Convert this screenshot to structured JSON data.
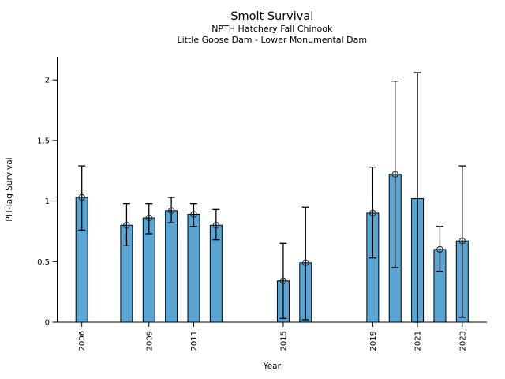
{
  "header": {
    "title": "Smolt Survival",
    "subtitle_line1": "NPTH Hatchery Fall Chinook",
    "subtitle_line2": "Little Goose Dam - Lower Monumental Dam"
  },
  "chart_data": {
    "type": "bar",
    "title": "Smolt Survival",
    "subtitle_line1": "NPTH Hatchery Fall Chinook",
    "subtitle_line2": "Little Goose Dam - Lower Monumental Dam",
    "xlabel": "Year",
    "ylabel": "PIT-Tag Survival",
    "xlim": [
      2004.9,
      2024.1
    ],
    "ylim": [
      0,
      2.19
    ],
    "yticks": [
      0,
      0.5,
      1,
      1.5,
      2
    ],
    "ytick_labels": [
      "0",
      "0.5",
      "1",
      "1.5",
      "2"
    ],
    "xticks": [
      2006,
      2009,
      2011,
      2015,
      2019,
      2021,
      2023
    ],
    "grid": false,
    "legend": null,
    "marker_style": "open-circle",
    "bar_color": "#59a5d3",
    "bar_edge_color": "#000000",
    "error_color": "#000000",
    "points": [
      {
        "year": 2006,
        "value": 1.03,
        "ci_low": 0.76,
        "ci_high": 1.29,
        "marker": true
      },
      {
        "year": 2008,
        "value": 0.8,
        "ci_low": 0.63,
        "ci_high": 0.98,
        "marker": true
      },
      {
        "year": 2009,
        "value": 0.86,
        "ci_low": 0.73,
        "ci_high": 0.98,
        "marker": true
      },
      {
        "year": 2010,
        "value": 0.92,
        "ci_low": 0.82,
        "ci_high": 1.03,
        "marker": true
      },
      {
        "year": 2011,
        "value": 0.89,
        "ci_low": 0.79,
        "ci_high": 0.98,
        "marker": true
      },
      {
        "year": 2012,
        "value": 0.8,
        "ci_low": 0.68,
        "ci_high": 0.93,
        "marker": true
      },
      {
        "year": 2015,
        "value": 0.34,
        "ci_low": 0.03,
        "ci_high": 0.65,
        "marker": true
      },
      {
        "year": 2016,
        "value": 0.49,
        "ci_low": 0.02,
        "ci_high": 0.95,
        "marker": true
      },
      {
        "year": 2019,
        "value": 0.9,
        "ci_low": 0.53,
        "ci_high": 1.28,
        "marker": true
      },
      {
        "year": 2020,
        "value": 1.22,
        "ci_low": 0.45,
        "ci_high": 1.99,
        "marker": true
      },
      {
        "year": 2021,
        "value": 1.02,
        "ci_low": 0.0,
        "ci_high": 2.06,
        "marker": false
      },
      {
        "year": 2022,
        "value": 0.6,
        "ci_low": 0.42,
        "ci_high": 0.79,
        "marker": true
      },
      {
        "year": 2023,
        "value": 0.67,
        "ci_low": 0.04,
        "ci_high": 1.29,
        "marker": true
      }
    ]
  }
}
